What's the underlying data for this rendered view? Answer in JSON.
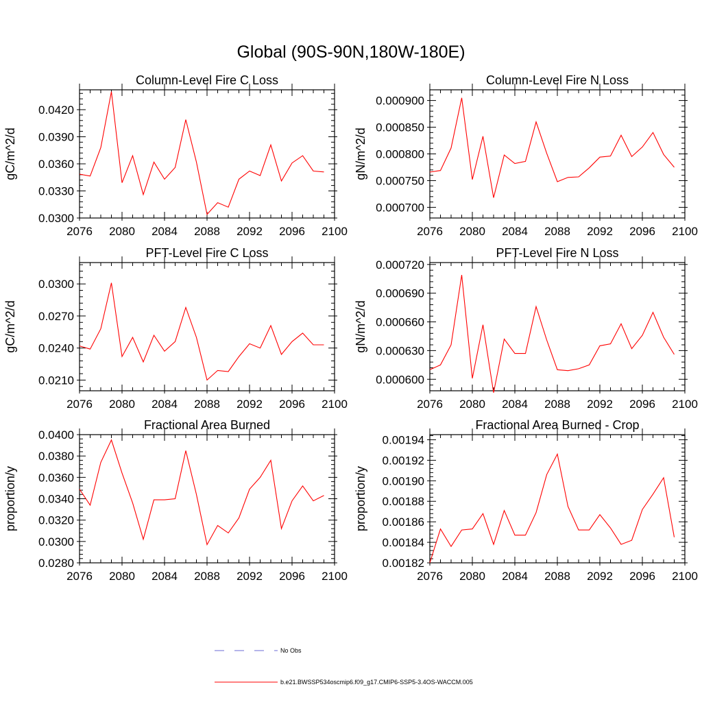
{
  "figure_title": "Global (90S-90N,180W-180E)",
  "colors": {
    "model_line": "#ff0000",
    "obs_line": "#6b6bd6",
    "axis": "#000000"
  },
  "legend": {
    "obs_label": "No Obs",
    "model_label": "b.e21.BWSSP534oscmip6.f09_g17.CMIP6-SSP5-3.4OS-WACCM.005"
  },
  "chart_data": [
    {
      "type": "line",
      "title": "Column-Level Fire C Loss",
      "ylabel": "gC/m^2/d",
      "xlabel": "",
      "xlim": [
        2076,
        2100
      ],
      "ylim": [
        0.03,
        0.0442
      ],
      "xticks": [
        2076,
        2080,
        2084,
        2088,
        2092,
        2096,
        2100
      ],
      "yticks": [
        0.03,
        0.033,
        0.036,
        0.039,
        0.042
      ],
      "ytick_labels": [
        "0.0300",
        "0.0330",
        "0.0360",
        "0.0390",
        "0.0420"
      ],
      "x": [
        2076,
        2077,
        2078,
        2079,
        2080,
        2081,
        2082,
        2083,
        2084,
        2085,
        2086,
        2087,
        2088,
        2089,
        2090,
        2091,
        2092,
        2093,
        2094,
        2095,
        2096,
        2097,
        2098,
        2099
      ],
      "values": [
        0.03485,
        0.03465,
        0.0378,
        0.044,
        0.0339,
        0.0369,
        0.0326,
        0.0362,
        0.0343,
        0.0356,
        0.0409,
        0.0362,
        0.0304,
        0.0317,
        0.0312,
        0.0343,
        0.0352,
        0.0347,
        0.0381,
        0.0341,
        0.0361,
        0.0369,
        0.0352,
        0.0351
      ],
      "series_name": "b.e21.BWSSP534oscmip6.f09_g17.CMIP6-SSP5-3.4OS-WACCM.005"
    },
    {
      "type": "line",
      "title": "Column-Level Fire N Loss",
      "ylabel": "gN/m^2/d",
      "xlabel": "",
      "xlim": [
        2076,
        2100
      ],
      "ylim": [
        0.00068,
        0.00092
      ],
      "xticks": [
        2076,
        2080,
        2084,
        2088,
        2092,
        2096,
        2100
      ],
      "yticks": [
        0.0007,
        0.00075,
        0.0008,
        0.00085,
        0.0009
      ],
      "ytick_labels": [
        "0.000700",
        "0.000750",
        "0.000800",
        "0.000850",
        "0.000900"
      ],
      "x": [
        2076,
        2077,
        2078,
        2079,
        2080,
        2081,
        2082,
        2083,
        2084,
        2085,
        2086,
        2087,
        2088,
        2089,
        2090,
        2091,
        2092,
        2093,
        2094,
        2095,
        2096,
        2097,
        2098,
        2099
      ],
      "values": [
        0.000766,
        0.000769,
        0.000811,
        0.000905,
        0.000752,
        0.000833,
        0.000718,
        0.000798,
        0.000782,
        0.000786,
        0.00086,
        0.000801,
        0.000748,
        0.000756,
        0.000757,
        0.000774,
        0.000794,
        0.000796,
        0.000835,
        0.000795,
        0.000813,
        0.00084,
        0.000799,
        0.000775
      ],
      "series_name": "b.e21.BWSSP534oscmip6.f09_g17.CMIP6-SSP5-3.4OS-WACCM.005"
    },
    {
      "type": "line",
      "title": "PFT-Level Fire C Loss",
      "ylabel": "gC/m^2/d",
      "xlabel": "",
      "xlim": [
        2076,
        2100
      ],
      "ylim": [
        0.02,
        0.032
      ],
      "xticks": [
        2076,
        2080,
        2084,
        2088,
        2092,
        2096,
        2100
      ],
      "yticks": [
        0.021,
        0.024,
        0.027,
        0.03
      ],
      "ytick_labels": [
        "0.0210",
        "0.0240",
        "0.0270",
        "0.0300"
      ],
      "x": [
        2076,
        2077,
        2078,
        2079,
        2080,
        2081,
        2082,
        2083,
        2084,
        2085,
        2086,
        2087,
        2088,
        2089,
        2090,
        2091,
        2092,
        2093,
        2094,
        2095,
        2096,
        2097,
        2098,
        2099
      ],
      "values": [
        0.0242,
        0.0239,
        0.0258,
        0.0301,
        0.0232,
        0.025,
        0.0227,
        0.0252,
        0.0237,
        0.0246,
        0.0278,
        0.025,
        0.021,
        0.0219,
        0.0218,
        0.0232,
        0.0244,
        0.024,
        0.0261,
        0.0234,
        0.0246,
        0.0254,
        0.0243,
        0.0243
      ],
      "series_name": "b.e21.BWSSP534oscmip6.f09_g17.CMIP6-SSP5-3.4OS-WACCM.005"
    },
    {
      "type": "line",
      "title": "PFT-Level Fire N Loss",
      "ylabel": "gN/m^2/d",
      "xlabel": "",
      "xlim": [
        2076,
        2100
      ],
      "ylim": [
        0.000588,
        0.000722
      ],
      "xticks": [
        2076,
        2080,
        2084,
        2088,
        2092,
        2096,
        2100
      ],
      "yticks": [
        0.0006,
        0.00063,
        0.00066,
        0.00069,
        0.00072
      ],
      "ytick_labels": [
        "0.000600",
        "0.000630",
        "0.000660",
        "0.000690",
        "0.000720"
      ],
      "x": [
        2076,
        2077,
        2078,
        2079,
        2080,
        2081,
        2082,
        2083,
        2084,
        2085,
        2086,
        2087,
        2088,
        2089,
        2090,
        2091,
        2092,
        2093,
        2094,
        2095,
        2096,
        2097,
        2098,
        2099
      ],
      "values": [
        0.00061,
        0.000615,
        0.000636,
        0.000709,
        0.000601,
        0.000657,
        0.000586,
        0.000642,
        0.000627,
        0.000627,
        0.000676,
        0.000641,
        0.00061,
        0.000609,
        0.000611,
        0.000615,
        0.000635,
        0.000637,
        0.000658,
        0.000632,
        0.000646,
        0.00067,
        0.000644,
        0.000626
      ],
      "series_name": "b.e21.BWSSP534oscmip6.f09_g17.CMIP6-SSP5-3.4OS-WACCM.005"
    },
    {
      "type": "line",
      "title": "Fractional Area Burned",
      "ylabel": "proportion/y",
      "xlabel": "",
      "xlim": [
        2076,
        2100
      ],
      "ylim": [
        0.028,
        0.04
      ],
      "xticks": [
        2076,
        2080,
        2084,
        2088,
        2092,
        2096,
        2100
      ],
      "yticks": [
        0.028,
        0.03,
        0.032,
        0.034,
        0.036,
        0.038,
        0.04
      ],
      "ytick_labels": [
        "0.0280",
        "0.0300",
        "0.0320",
        "0.0340",
        "0.0360",
        "0.0380",
        "0.0400"
      ],
      "x": [
        2076,
        2077,
        2078,
        2079,
        2080,
        2081,
        2082,
        2083,
        2084,
        2085,
        2086,
        2087,
        2088,
        2089,
        2090,
        2091,
        2092,
        2093,
        2094,
        2095,
        2096,
        2097,
        2098,
        2099
      ],
      "values": [
        0.0349,
        0.0334,
        0.0374,
        0.0395,
        0.0364,
        0.0336,
        0.0302,
        0.0339,
        0.0339,
        0.034,
        0.0385,
        0.0344,
        0.0297,
        0.0315,
        0.0308,
        0.0322,
        0.0349,
        0.036,
        0.0376,
        0.0312,
        0.0338,
        0.0352,
        0.0338,
        0.0343
      ],
      "series_name": "b.e21.BWSSP534oscmip6.f09_g17.CMIP6-SSP5-3.4OS-WACCM.005"
    },
    {
      "type": "line",
      "title": "Fractional Area Burned - Crop",
      "ylabel": "proportion/y",
      "xlabel": "",
      "xlim": [
        2076,
        2100
      ],
      "ylim": [
        0.00182,
        0.001945
      ],
      "xticks": [
        2076,
        2080,
        2084,
        2088,
        2092,
        2096,
        2100
      ],
      "yticks": [
        0.00182,
        0.00184,
        0.00186,
        0.00188,
        0.0019,
        0.00192,
        0.00194
      ],
      "ytick_labels": [
        "0.00182",
        "0.00184",
        "0.00186",
        "0.00188",
        "0.00190",
        "0.00192",
        "0.00194"
      ],
      "x": [
        2076,
        2077,
        2078,
        2079,
        2080,
        2081,
        2082,
        2083,
        2084,
        2085,
        2086,
        2087,
        2088,
        2089,
        2090,
        2091,
        2092,
        2093,
        2094,
        2095,
        2096,
        2097,
        2098,
        2099
      ],
      "values": [
        0.00182,
        0.001853,
        0.001836,
        0.001852,
        0.001853,
        0.001868,
        0.001838,
        0.001871,
        0.001847,
        0.001847,
        0.001869,
        0.001906,
        0.001926,
        0.001875,
        0.001852,
        0.001852,
        0.001867,
        0.001854,
        0.001838,
        0.001842,
        0.001872,
        0.001887,
        0.001903,
        0.001845
      ],
      "series_name": "b.e21.BWSSP534oscmip6.f09_g17.CMIP6-SSP5-3.4OS-WACCM.005"
    }
  ]
}
